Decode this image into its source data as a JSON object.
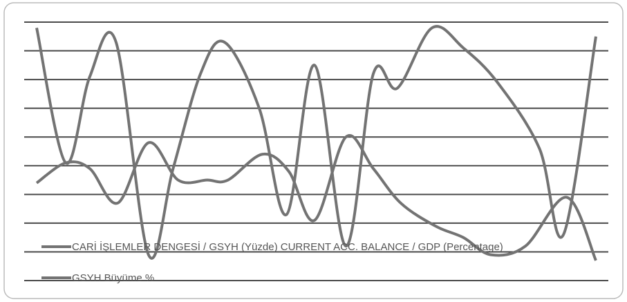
{
  "chart_data": {
    "type": "line",
    "xlim": [
      0,
      100
    ],
    "ylim": [
      0,
      9
    ],
    "yticks": [
      0,
      1,
      2,
      3,
      4,
      5,
      6,
      7,
      8,
      9
    ],
    "grid": true,
    "series": [
      {
        "name": "CARİ İŞLEMLER DENGESİ /  GSYH (Yüzde) CURRENT ACC. BALANCE   / GDP (Percentage)",
        "color": "#737373",
        "x": [
          0,
          5.2,
          9.5,
          14.5,
          20,
          25.3,
          30.5,
          34.2,
          40.4,
          45.1,
          49.7,
          55.3,
          60.2,
          65.1,
          71.3,
          76.3,
          81.2,
          87.4,
          94.8,
          100
        ],
        "values": [
          3.4,
          4.1,
          3.9,
          2.7,
          4.8,
          3.5,
          3.5,
          3.5,
          4.4,
          3.8,
          2.1,
          5.0,
          3.9,
          2.7,
          1.9,
          1.5,
          0.9,
          1.2,
          2.9,
          0.7
        ]
      },
      {
        "name": "GSYH Büyüme %",
        "color": "#737373",
        "x": [
          0,
          5.2,
          9.5,
          14.2,
          20,
          24.4,
          29.3,
          33.6,
          39.8,
          44.7,
          49.7,
          55.3,
          60.2,
          64.5,
          70.7,
          76.3,
          82.4,
          89.9,
          94.2,
          100
        ],
        "values": [
          8.8,
          4.1,
          7.1,
          8.3,
          0.9,
          3.9,
          7.2,
          8.3,
          6.0,
          2.3,
          7.5,
          1.2,
          7.2,
          6.7,
          8.8,
          8.1,
          6.9,
          4.6,
          1.6,
          8.5
        ]
      }
    ]
  }
}
